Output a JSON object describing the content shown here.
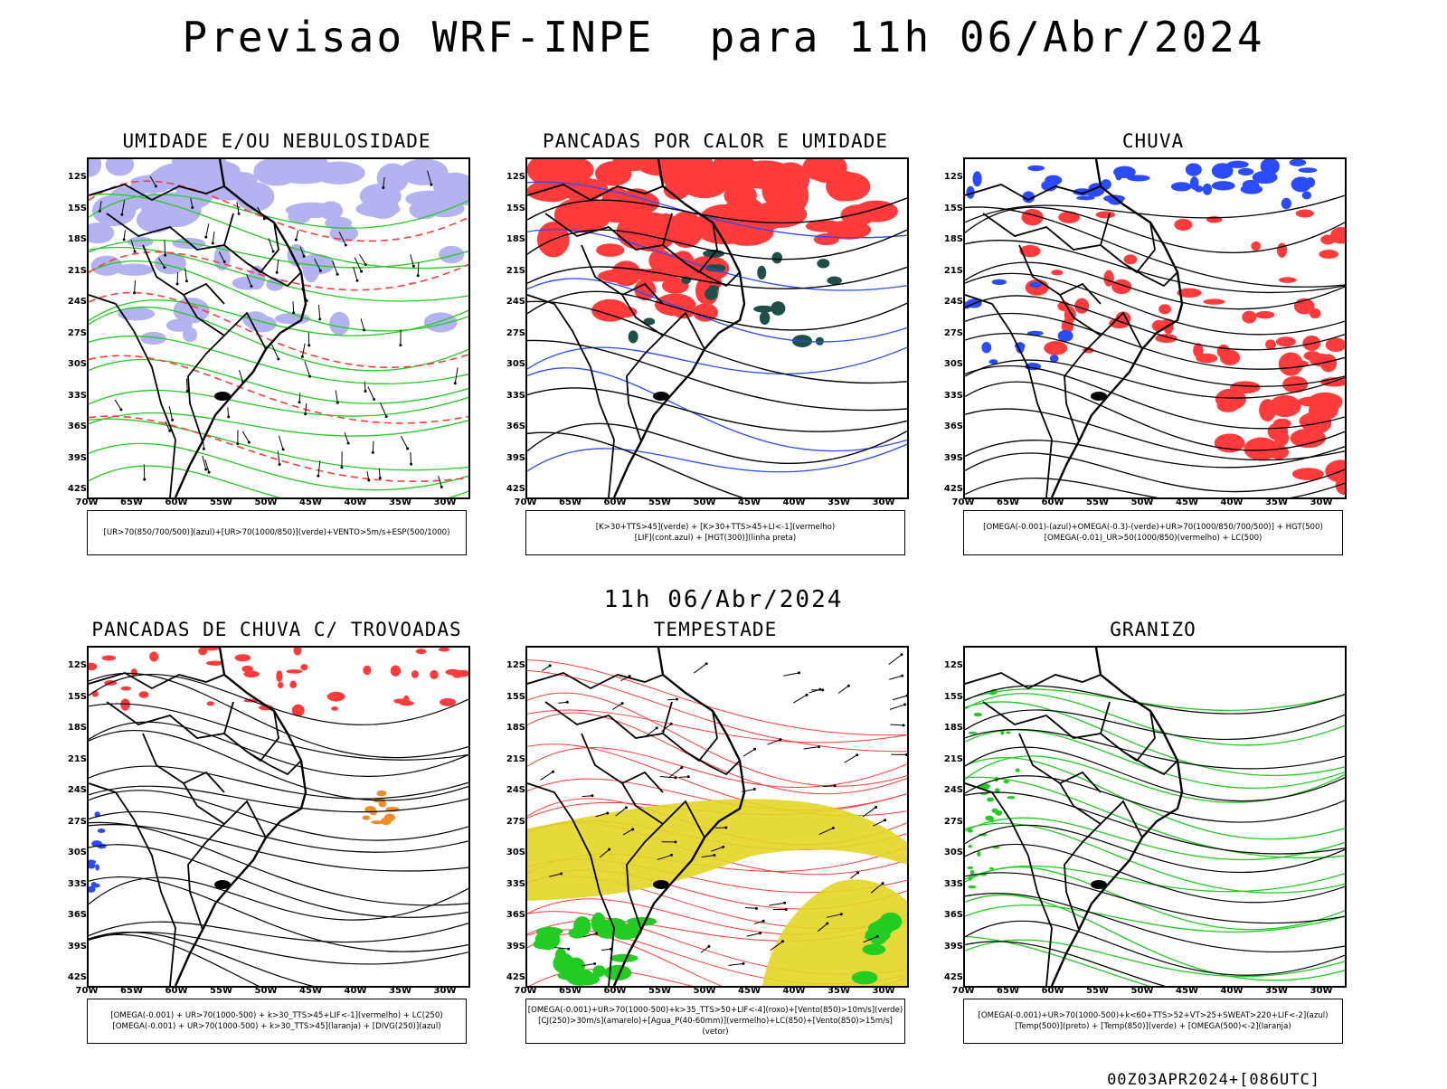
{
  "header": {
    "title": "Previsao WRF-INPE  para 11h 06/Abr/2024"
  },
  "mid_title": "11h 06/Abr/2024",
  "footer": "00Z03APR2024+[086UTC]",
  "lat_labels": [
    "12S",
    "15S",
    "18S",
    "21S",
    "24S",
    "27S",
    "30S",
    "33S",
    "36S",
    "39S",
    "42S"
  ],
  "lon_labels": [
    "70W",
    "65W",
    "60W",
    "55W",
    "50W",
    "45W",
    "40W",
    "35W",
    "30W"
  ],
  "panels": [
    {
      "title": "UMIDADE E/OU NEBULOSIDADE",
      "legend": [
        "[UR>70(850/700/500)](azul)+[UR>70(1000/850)](verde)+VENTO>5m/s+ESP(500/1000)"
      ]
    },
    {
      "title": "PANCADAS POR CALOR E UMIDADE",
      "legend": [
        "[K>30+TTS>45](verde) + [K>30+TTS>45+LI<-1](vermelho)",
        "[LIF](cont.azul) + [HGT(300)](linha preta)"
      ]
    },
    {
      "title": "CHUVA",
      "legend": [
        "[OMEGA(-0.001)-(azul)+OMEGA(-0.3)-(verde)+UR>70(1000/850/700/500)] + HGT(500)",
        "[OMEGA(-0.01)_UR>50(1000/850)(vermelho) + LC(500)"
      ]
    },
    {
      "title": "PANCADAS DE CHUVA C/ TROVOADAS",
      "legend": [
        "[OMEGA(-0.001) + UR>70(1000-500) + k>30_TTS>45+LIF<-1](vermelho) + LC(250)",
        "[OMEGA(-0.001) + UR>70(1000-500) + k>30_TTS>45](laranja) + [DIVG(250)](azul)"
      ]
    },
    {
      "title": "TEMPESTADE",
      "legend": [
        "[OMEGA(-0.001)+UR>70(1000-500)+k>35_TTS>50+LIF<-4](roxo)+[Vento(850)>10m/s](verde)",
        "[CJ(250)>30m/s](amarelo)+[Agua_P(40-60mm)](vermelho)+LC(850)+[Vento(850)>15m/s](vetor)"
      ]
    },
    {
      "title": "GRANIZO",
      "legend": [
        "[OMEGA(-0.001)+UR>70(1000-500)+k<60+TTS>52+VT>25+SWEAT>220+LIF<-2](azul)",
        "[Temp(500)](preto) + [Temp(850)](verde) + [OMEGA(500)<-2](laranja)"
      ]
    }
  ],
  "colors": {
    "red": "#ff3b3b",
    "green": "#22cc22",
    "blue": "#2a4bff",
    "lavender": "#b3b3f2",
    "yellow": "#e3d626",
    "orange": "#f28c28",
    "teal": "#1f4f4a",
    "black": "#000000"
  }
}
